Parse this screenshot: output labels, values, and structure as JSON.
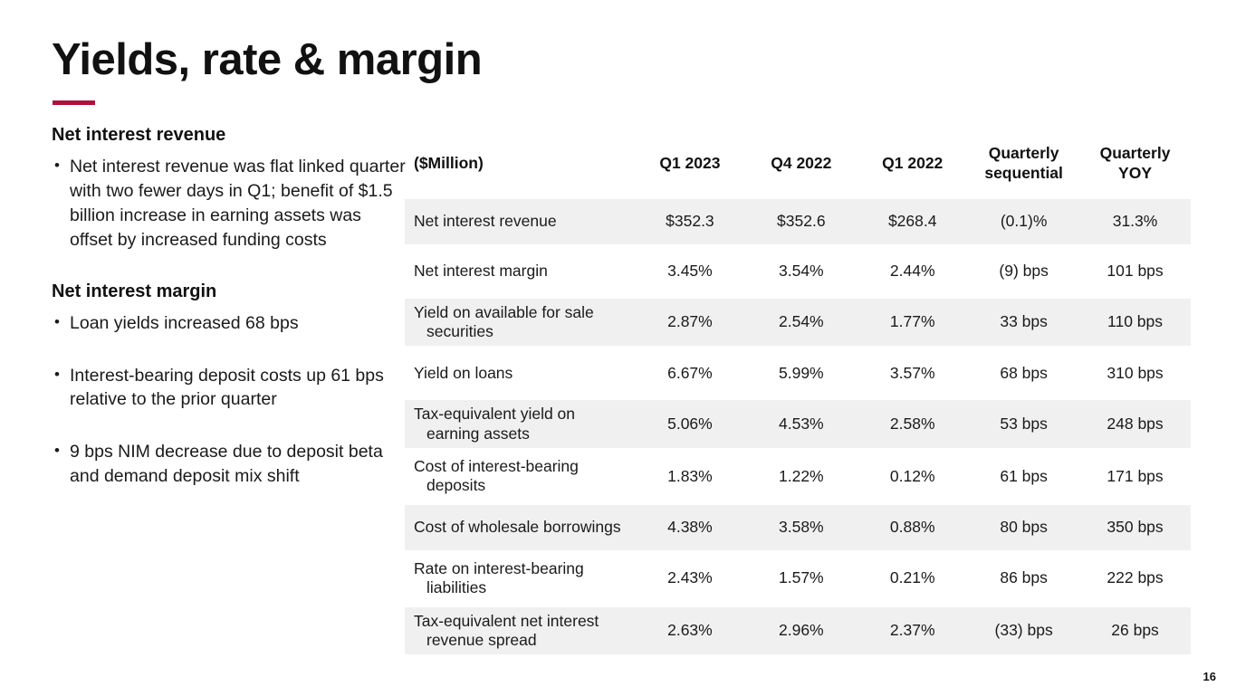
{
  "slide": {
    "title": "Yields, rate & margin",
    "page_number": "16",
    "accent_color": "#B1103A",
    "stripe_color": "#F0F0F0"
  },
  "left_panel": {
    "sections": [
      {
        "heading": "Net interest revenue",
        "bullets": [
          "Net interest revenue was flat linked quarter with two fewer days in Q1; benefit of $1.5 billion increase in earning assets was offset by increased funding costs"
        ]
      },
      {
        "heading": "Net interest margin",
        "bullets": [
          "Loan yields increased 68 bps",
          "Interest-bearing deposit costs up 61 bps relative to the prior quarter",
          "9 bps NIM decrease due to deposit beta and demand deposit mix shift"
        ]
      }
    ]
  },
  "table": {
    "columns": [
      "($Million)",
      "Q1 2023",
      "Q4 2022",
      "Q1 2022",
      "Quarterly sequential",
      "Quarterly YOY"
    ],
    "rows": [
      {
        "label": "Net interest revenue",
        "values": [
          "$352.3",
          "$352.6",
          "$268.4",
          "(0.1)%",
          "31.3%"
        ],
        "shaded": true
      },
      {
        "label": "Net interest margin",
        "values": [
          "3.45%",
          "3.54%",
          "2.44%",
          "(9) bps",
          "101 bps"
        ],
        "shaded": false
      },
      {
        "label": "Yield on available for sale securities",
        "values": [
          "2.87%",
          "2.54%",
          "1.77%",
          "33 bps",
          "110 bps"
        ],
        "shaded": true
      },
      {
        "label": "Yield on loans",
        "values": [
          "6.67%",
          "5.99%",
          "3.57%",
          "68 bps",
          "310 bps"
        ],
        "shaded": false
      },
      {
        "label": "Tax-equivalent yield on earning assets",
        "values": [
          "5.06%",
          "4.53%",
          "2.58%",
          "53 bps",
          "248 bps"
        ],
        "shaded": true
      },
      {
        "label": "Cost of interest-bearing deposits",
        "values": [
          "1.83%",
          "1.22%",
          "0.12%",
          "61 bps",
          "171 bps"
        ],
        "shaded": false
      },
      {
        "label": "Cost of wholesale borrowings",
        "values": [
          "4.38%",
          "3.58%",
          "0.88%",
          "80 bps",
          "350 bps"
        ],
        "shaded": true
      },
      {
        "label": "Rate on interest-bearing liabilities",
        "values": [
          "2.43%",
          "1.57%",
          "0.21%",
          "86 bps",
          "222 bps"
        ],
        "shaded": false
      },
      {
        "label": "Tax-equivalent net interest revenue spread",
        "values": [
          "2.63%",
          "2.96%",
          "2.37%",
          "(33) bps",
          "26 bps"
        ],
        "shaded": true
      }
    ]
  }
}
